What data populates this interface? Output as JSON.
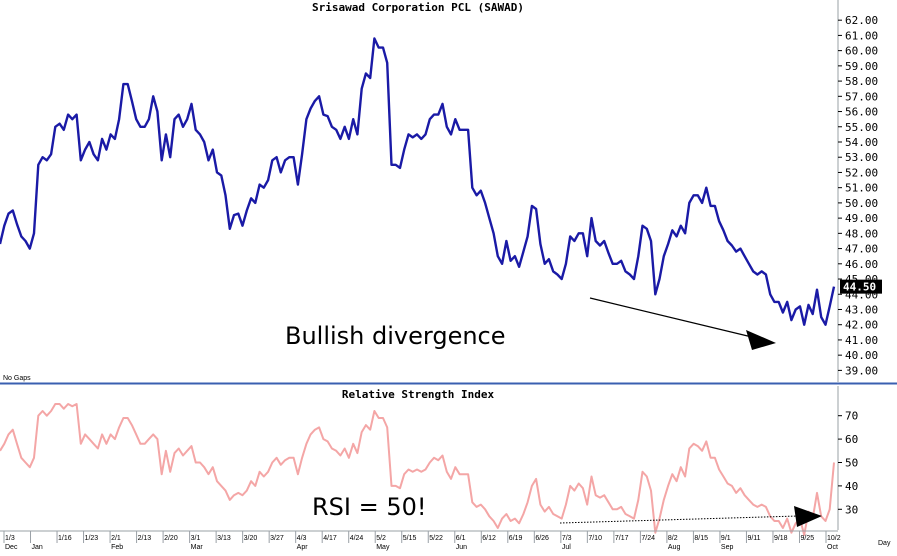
{
  "chart_data": [
    {
      "type": "line",
      "title": "Srisawad Corporation PCL (SAWAD)",
      "ylim": [
        38.5,
        62.8
      ],
      "yticks": [
        39,
        40,
        41,
        42,
        43,
        44,
        45,
        46,
        47,
        48,
        49,
        50,
        51,
        52,
        53,
        54,
        55,
        56,
        57,
        58,
        59,
        60,
        61,
        62
      ],
      "ytick_labels": [
        "39.00",
        "40.00",
        "41.00",
        "42.00",
        "43.00",
        "44.00",
        "45.00",
        "46.00",
        "47.00",
        "48.00",
        "49.00",
        "50.00",
        "51.00",
        "52.00",
        "53.00",
        "54.00",
        "55.00",
        "56.00",
        "57.00",
        "58.00",
        "59.00",
        "60.00",
        "61.00",
        "62.00"
      ],
      "last_value_label": "44.50",
      "last_value": 44.5,
      "note": "No Gaps",
      "annotation": "Bullish divergence",
      "series": [
        {
          "color": "#1a1aa6",
          "values": [
            47.3,
            48.5,
            49.3,
            49.5,
            48.6,
            47.8,
            47.5,
            47.0,
            48.0,
            52.5,
            53.0,
            52.8,
            53.2,
            55.0,
            55.2,
            54.8,
            55.8,
            55.5,
            55.8,
            52.8,
            53.5,
            54.0,
            53.2,
            52.8,
            54.2,
            53.5,
            54.5,
            54.2,
            55.5,
            57.8,
            57.8,
            56.7,
            55.5,
            55.0,
            55.0,
            55.5,
            57.0,
            56.0,
            52.8,
            54.5,
            53.0,
            55.5,
            55.8,
            55.0,
            55.5,
            56.5,
            54.8,
            54.5,
            54.0,
            52.8,
            53.5,
            52.0,
            51.8,
            50.5,
            48.3,
            49.2,
            49.3,
            48.5,
            49.5,
            50.3,
            50.0,
            51.2,
            51.0,
            51.5,
            52.8,
            53.0,
            52.0,
            52.8,
            53.0,
            53.0,
            51.2,
            53.2,
            55.5,
            56.2,
            56.7,
            57.0,
            55.8,
            55.7,
            55.0,
            54.8,
            54.2,
            55.0,
            54.2,
            55.5,
            54.5,
            57.5,
            58.5,
            58.2,
            60.8,
            60.2,
            60.2,
            59.2,
            52.5,
            52.5,
            52.3,
            53.5,
            54.5,
            54.3,
            54.5,
            54.2,
            54.5,
            55.5,
            55.8,
            55.8,
            56.5,
            55.0,
            54.5,
            55.5,
            54.8,
            54.8,
            54.8,
            51.0,
            50.5,
            50.8,
            50.0,
            49.0,
            48.0,
            46.5,
            46.0,
            47.5,
            46.2,
            46.5,
            45.8,
            46.8,
            47.8,
            49.8,
            49.6,
            47.3,
            46.0,
            46.3,
            45.5,
            45.3,
            45.0,
            46.0,
            47.8,
            47.5,
            48.0,
            48.0,
            46.5,
            49.0,
            47.5,
            47.2,
            47.5,
            46.7,
            46.0,
            46.0,
            46.2,
            45.5,
            45.3,
            45.0,
            46.5,
            48.5,
            48.3,
            47.5,
            44.0,
            45.0,
            46.5,
            47.3,
            48.2,
            47.8,
            48.5,
            48.0,
            50.0,
            50.5,
            50.5,
            50.0,
            51.0,
            49.8,
            49.8,
            48.8,
            48.2,
            47.5,
            47.2,
            46.8,
            47.0,
            46.5,
            46.0,
            45.5,
            45.3,
            45.5,
            45.3,
            44.0,
            43.5,
            43.5,
            42.8,
            43.5,
            42.3,
            43.0,
            43.2,
            42.0,
            43.3,
            42.7,
            44.3,
            42.5,
            42.0,
            43.2,
            44.5
          ]
        }
      ]
    },
    {
      "type": "line",
      "title": "Relative Strength Index",
      "ylim": [
        22,
        75
      ],
      "yticks": [
        30,
        40,
        50,
        60,
        70
      ],
      "ytick_labels": [
        "30",
        "40",
        "50",
        "60",
        "70"
      ],
      "annotation": "RSI = 50!",
      "x_axis_unit": "Day",
      "x_tick_labels": [
        {
          "day": "1/3",
          "month": "Dec"
        },
        {
          "day": "",
          "month": "Jan"
        },
        {
          "day": "1/16",
          "month": ""
        },
        {
          "day": "1/23",
          "month": ""
        },
        {
          "day": "2/1",
          "month": "Feb"
        },
        {
          "day": "2/13",
          "month": ""
        },
        {
          "day": "2/20",
          "month": ""
        },
        {
          "day": "3/1",
          "month": "Mar"
        },
        {
          "day": "3/13",
          "month": ""
        },
        {
          "day": "3/20",
          "month": ""
        },
        {
          "day": "3/27",
          "month": ""
        },
        {
          "day": "4/3",
          "month": "Apr"
        },
        {
          "day": "4/17",
          "month": ""
        },
        {
          "day": "4/24",
          "month": ""
        },
        {
          "day": "5/2",
          "month": "May"
        },
        {
          "day": "5/15",
          "month": ""
        },
        {
          "day": "5/22",
          "month": ""
        },
        {
          "day": "6/1",
          "month": "Jun"
        },
        {
          "day": "6/12",
          "month": ""
        },
        {
          "day": "6/19",
          "month": ""
        },
        {
          "day": "6/26",
          "month": ""
        },
        {
          "day": "7/3",
          "month": "Jul"
        },
        {
          "day": "7/10",
          "month": ""
        },
        {
          "day": "7/17",
          "month": ""
        },
        {
          "day": "7/24",
          "month": ""
        },
        {
          "day": "8/2",
          "month": "Aug"
        },
        {
          "day": "8/15",
          "month": ""
        },
        {
          "day": "9/1",
          "month": "Sep"
        },
        {
          "day": "9/11",
          "month": ""
        },
        {
          "day": "9/18",
          "month": ""
        },
        {
          "day": "9/25",
          "month": ""
        },
        {
          "day": "10/2",
          "month": "Oct"
        }
      ],
      "series": [
        {
          "color": "#f4a6a6",
          "values": [
            55,
            58,
            62,
            64,
            58,
            52,
            50,
            48,
            52,
            70,
            72,
            70,
            72,
            75,
            75,
            73,
            75,
            74,
            75,
            58,
            62,
            60,
            58,
            56,
            62,
            58,
            62,
            60,
            65,
            69,
            69,
            66,
            62,
            58,
            58,
            60,
            62,
            60,
            45,
            55,
            46,
            54,
            56,
            53,
            55,
            57,
            50,
            50,
            48,
            45,
            48,
            42,
            40,
            38,
            34,
            36,
            37,
            36,
            38,
            42,
            40,
            46,
            44,
            46,
            50,
            52,
            49,
            51,
            52,
            52,
            45,
            52,
            58,
            62,
            64,
            65,
            60,
            59,
            56,
            55,
            53,
            56,
            52,
            58,
            54,
            63,
            66,
            64,
            72,
            69,
            69,
            65,
            40,
            40,
            39,
            45,
            47,
            46,
            47,
            46,
            47,
            50,
            52,
            51,
            53,
            46,
            43,
            48,
            45,
            45,
            45,
            33,
            31,
            32,
            30,
            27,
            25,
            22,
            26,
            28,
            25,
            26,
            24,
            28,
            33,
            40,
            43,
            32,
            29,
            31,
            28,
            27,
            26,
            32,
            40,
            38,
            41,
            39,
            32,
            44,
            36,
            35,
            36,
            33,
            30,
            30,
            31,
            28,
            27,
            26,
            34,
            46,
            44,
            38,
            20,
            26,
            34,
            40,
            45,
            42,
            48,
            44,
            56,
            58,
            57,
            55,
            59,
            52,
            52,
            47,
            44,
            41,
            40,
            37,
            39,
            36,
            34,
            32,
            31,
            32,
            31,
            27,
            25,
            25,
            22,
            26,
            20,
            24,
            26,
            19,
            29,
            26,
            37,
            27,
            25,
            30,
            50
          ]
        }
      ]
    }
  ]
}
